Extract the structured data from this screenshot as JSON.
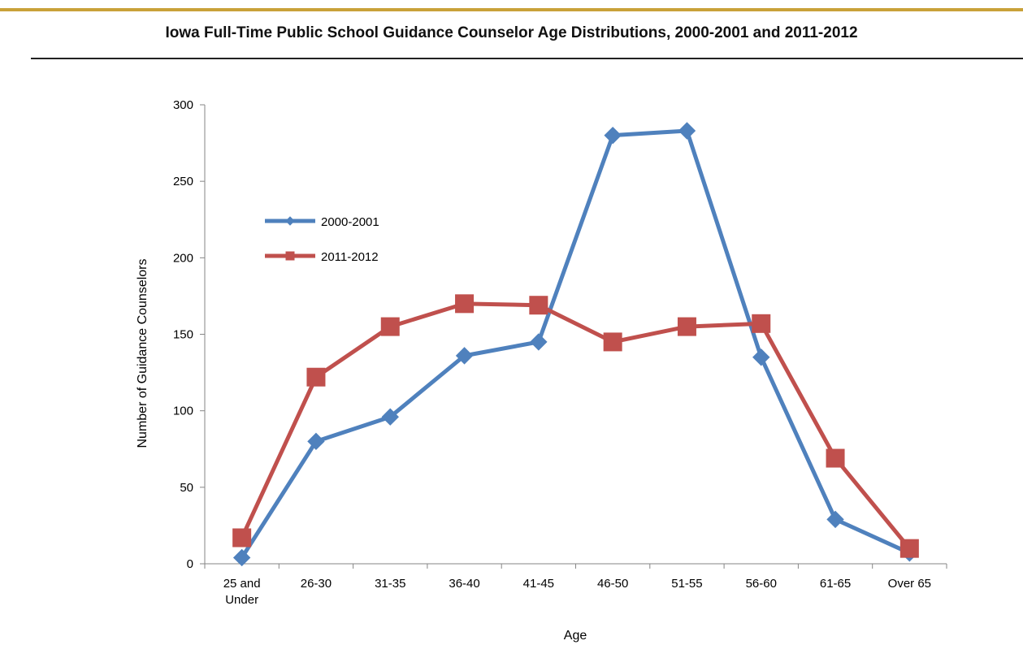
{
  "title": "Iowa Full-Time Public School Guidance Counselor Age Distributions, 2000-2001 and 2011-2012",
  "chart_data": {
    "type": "line",
    "title": "Iowa Full-Time Public School Guidance Counselor Age Distributions, 2000-2001 and 2011-2012",
    "xlabel": "Age",
    "ylabel": "Number of Guidance Counselors",
    "ylim": [
      0,
      300
    ],
    "yticks": [
      0,
      50,
      100,
      150,
      200,
      250,
      300
    ],
    "categories": [
      "25 and Under",
      "26-30",
      "31-35",
      "36-40",
      "41-45",
      "46-50",
      "51-55",
      "56-60",
      "61-65",
      "Over 65"
    ],
    "category_lines": [
      [
        "25 and",
        "Under"
      ],
      [
        "26-30"
      ],
      [
        "31-35"
      ],
      [
        "36-40"
      ],
      [
        "41-45"
      ],
      [
        "46-50"
      ],
      [
        "51-55"
      ],
      [
        "56-60"
      ],
      [
        "61-65"
      ],
      [
        "Over 65"
      ]
    ],
    "series": [
      {
        "name": "2000-2001",
        "color": "#4f81bd",
        "marker": "diamond",
        "values": [
          4,
          80,
          96,
          136,
          145,
          280,
          283,
          135,
          29,
          7
        ]
      },
      {
        "name": "2011-2012",
        "color": "#c0504d",
        "marker": "square",
        "values": [
          17,
          122,
          155,
          170,
          169,
          145,
          155,
          157,
          69,
          10
        ]
      }
    ],
    "grid": false,
    "legend_position": "left"
  }
}
